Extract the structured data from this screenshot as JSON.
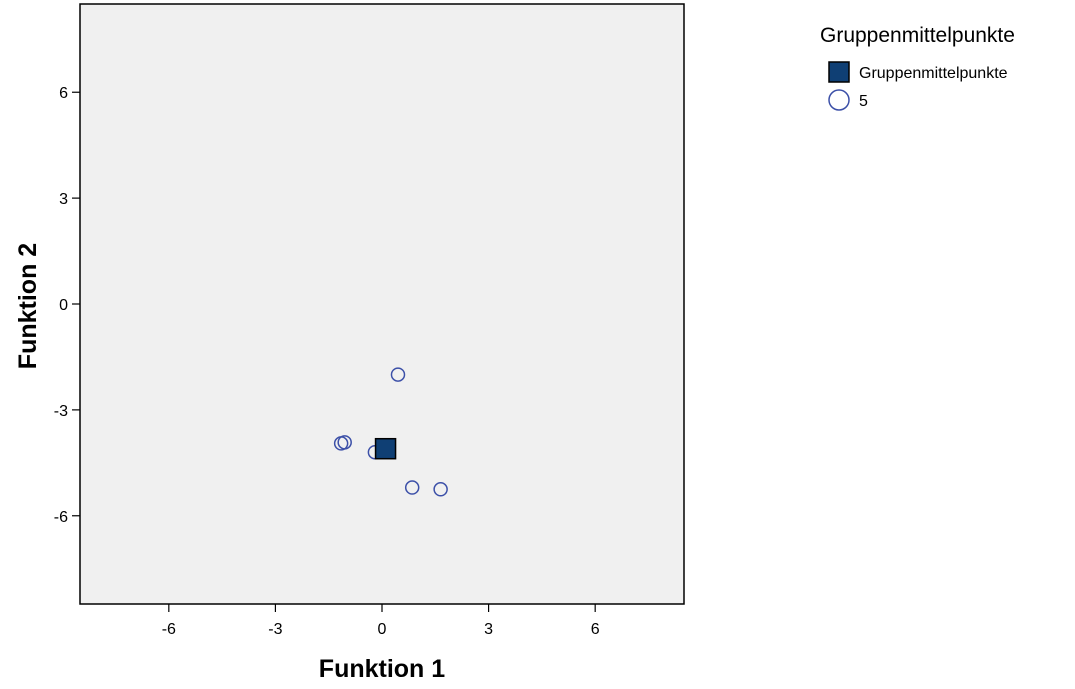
{
  "chart_data": {
    "type": "scatter",
    "xlabel": "Funktion 1",
    "ylabel": "Funktion 2",
    "xlim": [
      -8.5,
      8.5
    ],
    "ylim": [
      -8.5,
      8.5
    ],
    "xticks": [
      -6,
      -3,
      0,
      3,
      6
    ],
    "yticks": [
      6,
      3,
      0,
      -3,
      -6
    ],
    "grid": false,
    "legend": {
      "title": "Gruppenmittelpunkte",
      "placement": "top-right",
      "items": [
        {
          "label": "Gruppenmittelpunkte",
          "marker": "filled-square"
        },
        {
          "label": "5",
          "marker": "open-circle"
        }
      ]
    },
    "series": [
      {
        "name": "5",
        "marker": "open-circle",
        "points": [
          {
            "x": 0.45,
            "y": -2.0
          },
          {
            "x": -1.15,
            "y": -3.95
          },
          {
            "x": -1.05,
            "y": -3.92
          },
          {
            "x": -0.2,
            "y": -4.2
          },
          {
            "x": 0.85,
            "y": -5.2
          },
          {
            "x": 1.65,
            "y": -5.25
          }
        ]
      },
      {
        "name": "Gruppenmittelpunkte",
        "marker": "filled-square",
        "points": [
          {
            "x": 0.1,
            "y": -4.1
          }
        ]
      }
    ],
    "colors": {
      "plot_background": "#f0f0f0",
      "circle_stroke": "#3c50a8",
      "square_fill": "#0f3f74",
      "square_stroke": "#000000"
    }
  }
}
